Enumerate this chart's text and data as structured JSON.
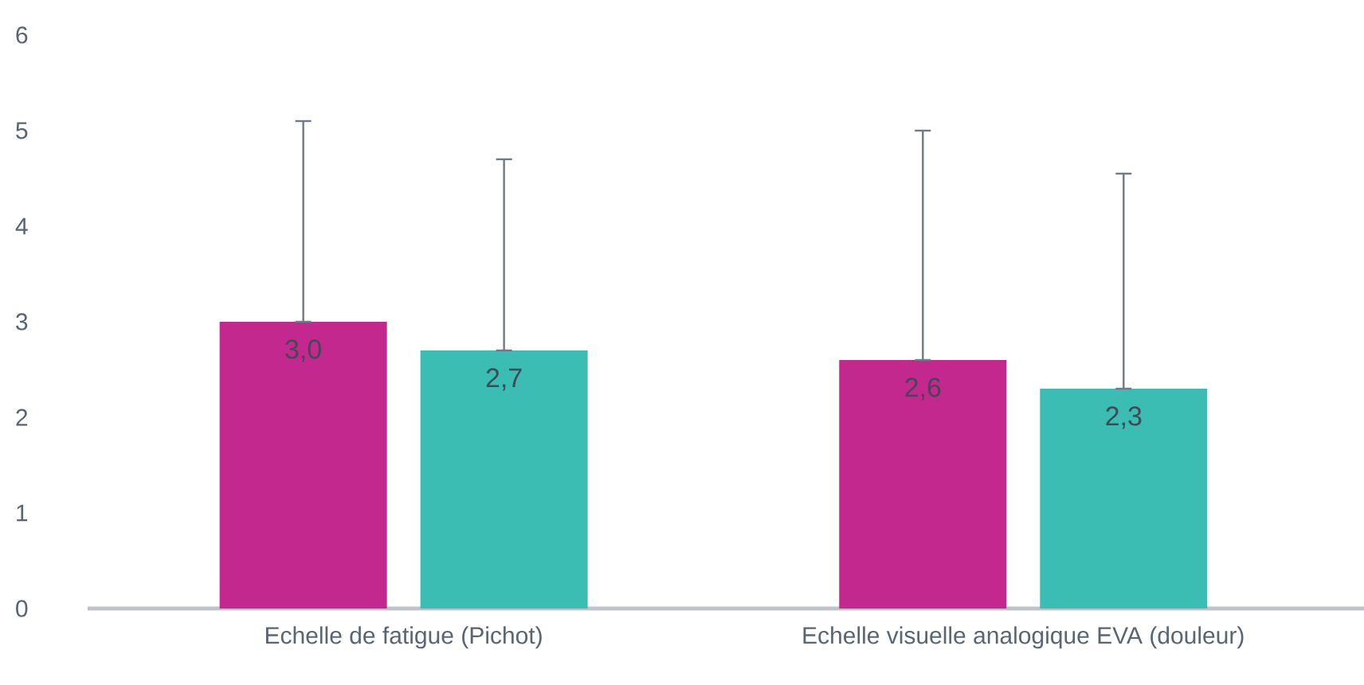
{
  "chart_data": {
    "type": "bar",
    "categories": [
      "Echelle de fatigue (Pichot)",
      "Echelle visuelle analogique EVA (douleur)"
    ],
    "series": [
      {
        "color": "#c3288f",
        "values": [
          3.0,
          2.6
        ],
        "value_labels": [
          "3,0",
          "2,6"
        ],
        "errors": [
          [
            3.0,
            5.1
          ],
          [
            2.6,
            5.0
          ]
        ]
      },
      {
        "color": "#3cbdb4",
        "values": [
          2.7,
          2.3
        ],
        "value_labels": [
          "2,7",
          "2,3"
        ],
        "errors": [
          [
            2.7,
            4.7
          ],
          [
            2.3,
            4.55
          ]
        ]
      }
    ],
    "ylim": [
      0,
      6
    ],
    "yticks": [
      0,
      1,
      2,
      3,
      4,
      5,
      6
    ],
    "grid": false
  }
}
